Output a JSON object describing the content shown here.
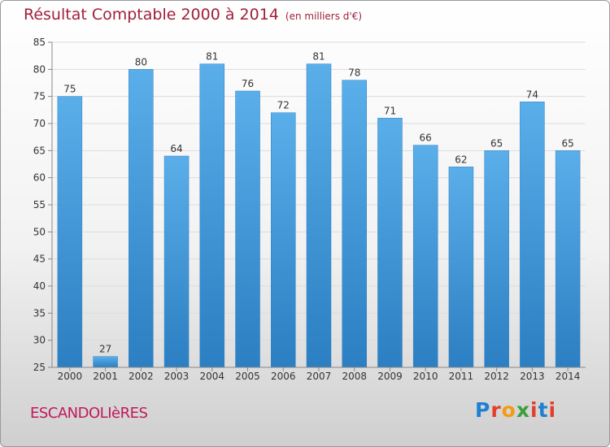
{
  "header": {
    "title": "Résultat Comptable 2000 à 2014",
    "subtitle": "(en milliers d'€)"
  },
  "footer": {
    "commune": "ESCANDOLIèRES",
    "logo": [
      "P",
      "r",
      "o",
      "x",
      "i",
      "t",
      "i"
    ]
  },
  "chart_data": {
    "type": "bar",
    "categories": [
      "2000",
      "2001",
      "2002",
      "2003",
      "2004",
      "2005",
      "2006",
      "2007",
      "2008",
      "2009",
      "2010",
      "2011",
      "2012",
      "2013",
      "2014"
    ],
    "values": [
      75,
      27,
      80,
      64,
      81,
      76,
      72,
      81,
      78,
      71,
      66,
      62,
      65,
      74,
      65
    ],
    "title": "Résultat Comptable 2000 à 2014",
    "ylim": [
      25,
      85
    ],
    "yticks": [
      25,
      30,
      35,
      40,
      45,
      50,
      55,
      60,
      65,
      70,
      75,
      80,
      85
    ],
    "grid": true,
    "colors": {
      "bar_top": "#5aaee9",
      "bar_bottom": "#2b7fc2",
      "grid": "#dcdcdc",
      "axis": "#888888"
    }
  }
}
